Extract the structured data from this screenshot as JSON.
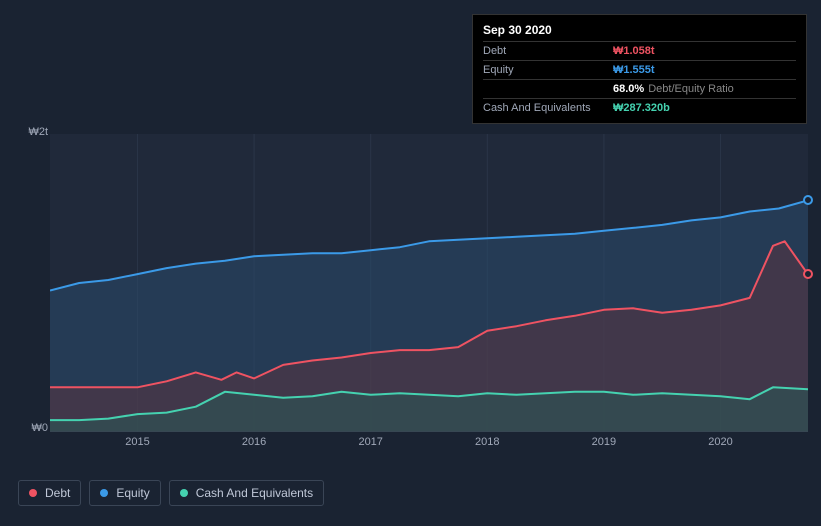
{
  "tooltip": {
    "date": "Sep 30 2020",
    "rows": [
      {
        "label": "Debt",
        "value": "₩1.058t",
        "color": "#ef5362"
      },
      {
        "label": "Equity",
        "value": "₩1.555t",
        "color": "#3b9ae8"
      },
      {
        "label": "",
        "value": "68.0%",
        "suffix": "Debt/Equity Ratio",
        "color": "#ffffff"
      },
      {
        "label": "Cash And Equivalents",
        "value": "₩287.320b",
        "color": "#45d2b0"
      }
    ]
  },
  "chart": {
    "type": "area",
    "background_color": "#1a2332",
    "plot_background": "#20293a",
    "currency_prefix": "₩",
    "y_axis": {
      "min": 0,
      "max": 2,
      "unit": "t",
      "labels": [
        {
          "value": 2,
          "text": "₩2t"
        },
        {
          "value": 0,
          "text": "₩0"
        }
      ],
      "label_fontsize": 11,
      "label_color": "#a0a8b8"
    },
    "x_axis": {
      "min": 2014.25,
      "max": 2020.75,
      "ticks": [
        2015,
        2016,
        2017,
        2018,
        2019,
        2020
      ],
      "label_fontsize": 11,
      "label_color": "#a0a8b8"
    },
    "series": [
      {
        "name": "Equity",
        "color": "#3b9ae8",
        "fill_color": "#2a4a6b",
        "fill_opacity": 0.55,
        "line_width": 2,
        "data": [
          [
            2014.25,
            0.95
          ],
          [
            2014.5,
            1.0
          ],
          [
            2014.75,
            1.02
          ],
          [
            2015.0,
            1.06
          ],
          [
            2015.25,
            1.1
          ],
          [
            2015.5,
            1.13
          ],
          [
            2015.75,
            1.15
          ],
          [
            2016.0,
            1.18
          ],
          [
            2016.25,
            1.19
          ],
          [
            2016.5,
            1.2
          ],
          [
            2016.75,
            1.2
          ],
          [
            2017.0,
            1.22
          ],
          [
            2017.25,
            1.24
          ],
          [
            2017.5,
            1.28
          ],
          [
            2017.75,
            1.29
          ],
          [
            2018.0,
            1.3
          ],
          [
            2018.25,
            1.31
          ],
          [
            2018.5,
            1.32
          ],
          [
            2018.75,
            1.33
          ],
          [
            2019.0,
            1.35
          ],
          [
            2019.25,
            1.37
          ],
          [
            2019.5,
            1.39
          ],
          [
            2019.75,
            1.42
          ],
          [
            2020.0,
            1.44
          ],
          [
            2020.25,
            1.48
          ],
          [
            2020.5,
            1.5
          ],
          [
            2020.75,
            1.555
          ]
        ],
        "end_marker": true
      },
      {
        "name": "Debt",
        "color": "#ef5362",
        "fill_color": "#5a3442",
        "fill_opacity": 0.55,
        "line_width": 2,
        "data": [
          [
            2014.25,
            0.3
          ],
          [
            2014.5,
            0.3
          ],
          [
            2014.75,
            0.3
          ],
          [
            2015.0,
            0.3
          ],
          [
            2015.25,
            0.34
          ],
          [
            2015.5,
            0.4
          ],
          [
            2015.72,
            0.35
          ],
          [
            2015.85,
            0.4
          ],
          [
            2016.0,
            0.36
          ],
          [
            2016.25,
            0.45
          ],
          [
            2016.5,
            0.48
          ],
          [
            2016.75,
            0.5
          ],
          [
            2017.0,
            0.53
          ],
          [
            2017.25,
            0.55
          ],
          [
            2017.5,
            0.55
          ],
          [
            2017.75,
            0.57
          ],
          [
            2018.0,
            0.68
          ],
          [
            2018.25,
            0.71
          ],
          [
            2018.5,
            0.75
          ],
          [
            2018.75,
            0.78
          ],
          [
            2019.0,
            0.82
          ],
          [
            2019.25,
            0.83
          ],
          [
            2019.5,
            0.8
          ],
          [
            2019.75,
            0.82
          ],
          [
            2020.0,
            0.85
          ],
          [
            2020.25,
            0.9
          ],
          [
            2020.45,
            1.25
          ],
          [
            2020.55,
            1.28
          ],
          [
            2020.75,
            1.058
          ]
        ],
        "end_marker": true
      },
      {
        "name": "Cash And Equivalents",
        "color": "#45d2b0",
        "fill_color": "#2a5a56",
        "fill_opacity": 0.55,
        "line_width": 2,
        "data": [
          [
            2014.25,
            0.08
          ],
          [
            2014.5,
            0.08
          ],
          [
            2014.75,
            0.09
          ],
          [
            2015.0,
            0.12
          ],
          [
            2015.25,
            0.13
          ],
          [
            2015.5,
            0.17
          ],
          [
            2015.75,
            0.27
          ],
          [
            2016.0,
            0.25
          ],
          [
            2016.25,
            0.23
          ],
          [
            2016.5,
            0.24
          ],
          [
            2016.75,
            0.27
          ],
          [
            2017.0,
            0.25
          ],
          [
            2017.25,
            0.26
          ],
          [
            2017.5,
            0.25
          ],
          [
            2017.75,
            0.24
          ],
          [
            2018.0,
            0.26
          ],
          [
            2018.25,
            0.25
          ],
          [
            2018.5,
            0.26
          ],
          [
            2018.75,
            0.27
          ],
          [
            2019.0,
            0.27
          ],
          [
            2019.25,
            0.25
          ],
          [
            2019.5,
            0.26
          ],
          [
            2019.75,
            0.25
          ],
          [
            2020.0,
            0.24
          ],
          [
            2020.25,
            0.22
          ],
          [
            2020.45,
            0.3
          ],
          [
            2020.75,
            0.287
          ]
        ],
        "end_marker": false
      }
    ]
  },
  "legend": {
    "items": [
      {
        "label": "Debt",
        "color": "#ef5362"
      },
      {
        "label": "Equity",
        "color": "#3b9ae8"
      },
      {
        "label": "Cash And Equivalents",
        "color": "#45d2b0"
      }
    ],
    "border_color": "#3a4556",
    "text_color": "#c0c8d8",
    "fontsize": 12
  }
}
